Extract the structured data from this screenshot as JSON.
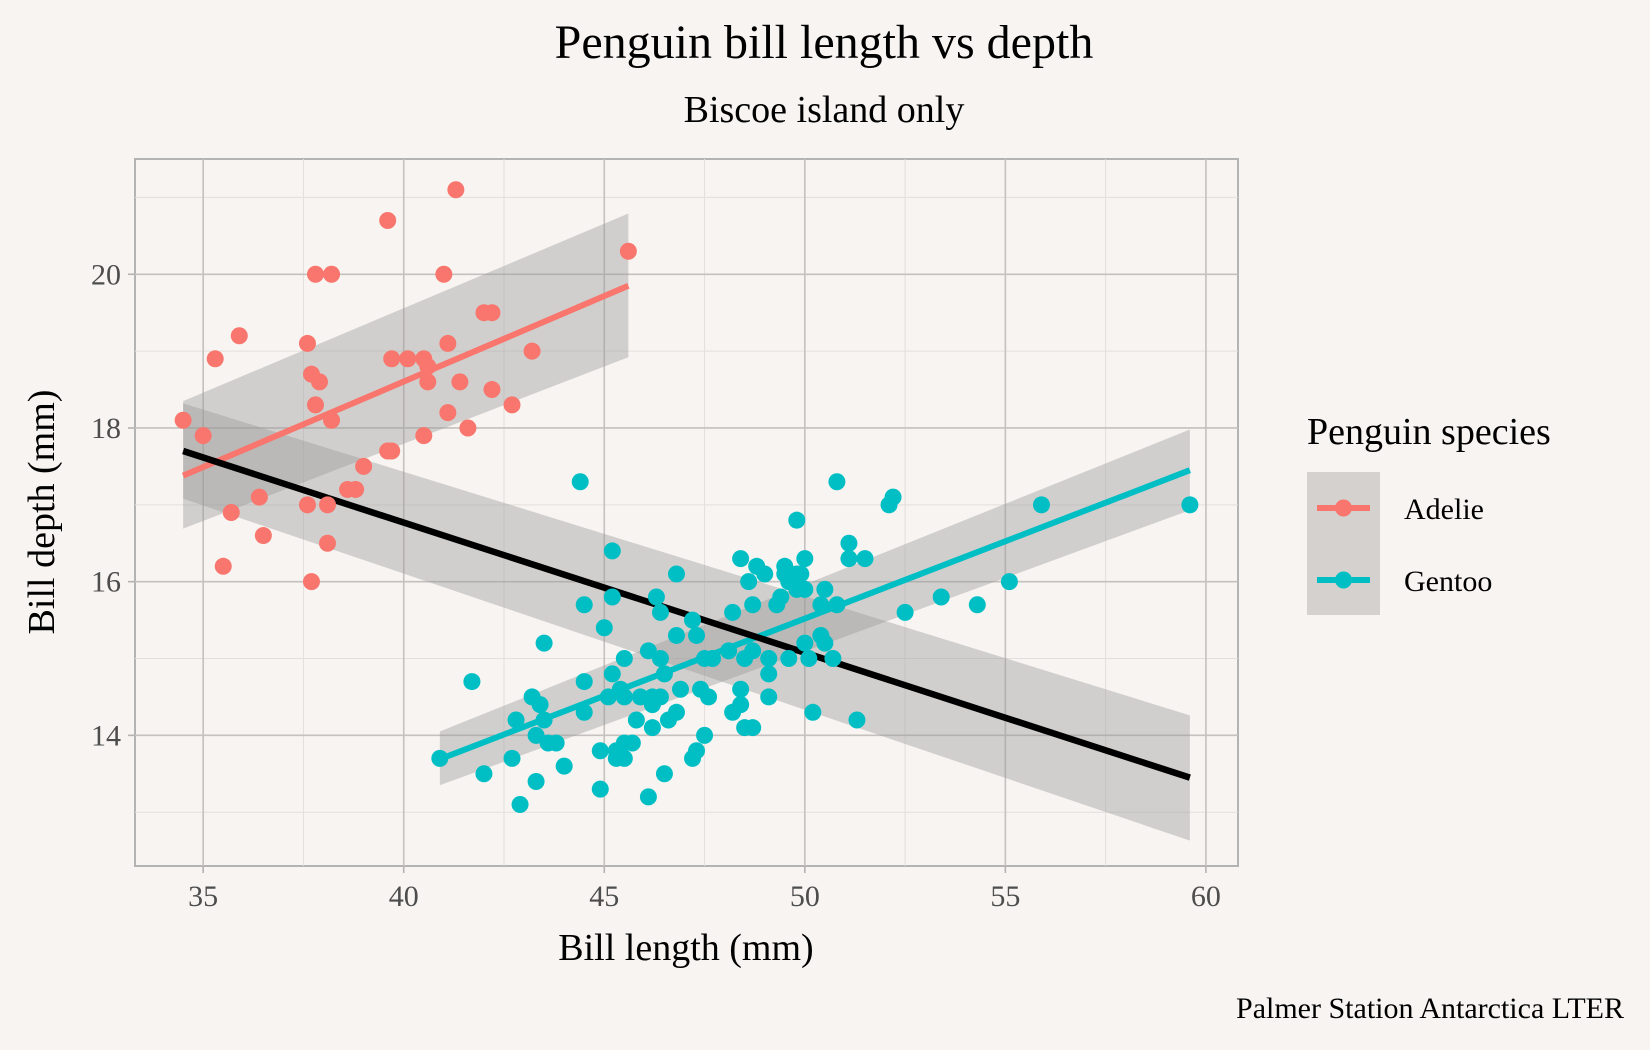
{
  "chart_data": {
    "type": "scatter",
    "title": "Penguin bill length vs depth",
    "subtitle": "Biscoe island only",
    "xlabel": "Bill length  (mm)",
    "ylabel": "Bill depth (mm)",
    "caption": "Palmer Station Antarctica LTER",
    "xlim": [
      33.3,
      60.8
    ],
    "ylim": [
      12.3,
      21.5
    ],
    "x_ticks": [
      35,
      40,
      45,
      50,
      55,
      60
    ],
    "y_ticks": [
      14,
      16,
      18,
      20
    ],
    "x_tick_labels": [
      "35",
      "40",
      "45",
      "50",
      "55",
      "60"
    ],
    "y_tick_labels": [
      "14",
      "16",
      "18",
      "20"
    ],
    "grid": true,
    "legend": {
      "title": "Penguin species",
      "position": "right",
      "entries": [
        {
          "label": "Adelie",
          "color": "#f8766d"
        },
        {
          "label": "Gentoo",
          "color": "#00bfc4"
        }
      ]
    },
    "series": [
      {
        "name": "Adelie",
        "color": "#f8766d",
        "points": [
          [
            34.5,
            18.1
          ],
          [
            35.0,
            17.9
          ],
          [
            35.3,
            18.9
          ],
          [
            35.5,
            16.2
          ],
          [
            35.7,
            16.9
          ],
          [
            35.9,
            19.2
          ],
          [
            36.4,
            17.1
          ],
          [
            36.5,
            16.6
          ],
          [
            37.6,
            19.1
          ],
          [
            37.6,
            17.0
          ],
          [
            37.7,
            18.7
          ],
          [
            37.7,
            16.0
          ],
          [
            37.8,
            20.0
          ],
          [
            37.8,
            18.3
          ],
          [
            37.9,
            18.6
          ],
          [
            38.1,
            17.0
          ],
          [
            38.1,
            16.5
          ],
          [
            38.2,
            20.0
          ],
          [
            38.2,
            18.1
          ],
          [
            38.6,
            17.2
          ],
          [
            38.8,
            17.2
          ],
          [
            39.0,
            17.5
          ],
          [
            39.6,
            20.7
          ],
          [
            39.6,
            17.7
          ],
          [
            39.7,
            17.7
          ],
          [
            39.7,
            18.9
          ],
          [
            40.1,
            18.9
          ],
          [
            40.5,
            18.9
          ],
          [
            40.6,
            18.8
          ],
          [
            40.5,
            17.9
          ],
          [
            40.6,
            18.6
          ],
          [
            41.0,
            20.0
          ],
          [
            41.1,
            19.1
          ],
          [
            41.1,
            18.2
          ],
          [
            41.3,
            21.1
          ],
          [
            41.4,
            18.6
          ],
          [
            41.6,
            18.0
          ],
          [
            42.0,
            19.5
          ],
          [
            42.2,
            19.5
          ],
          [
            42.7,
            18.3
          ],
          [
            42.2,
            18.5
          ],
          [
            43.2,
            19.0
          ],
          [
            45.6,
            20.3
          ]
        ],
        "fit": {
          "x": [
            34.5,
            45.6
          ],
          "y": [
            17.38,
            19.85
          ],
          "ci_low": [
            16.69,
            18.92
          ],
          "ci_high": [
            18.35,
            20.79
          ]
        }
      },
      {
        "name": "Gentoo",
        "color": "#00bfc4",
        "points": [
          [
            40.9,
            13.7
          ],
          [
            41.7,
            14.7
          ],
          [
            42.0,
            13.5
          ],
          [
            42.7,
            13.7
          ],
          [
            42.8,
            14.2
          ],
          [
            42.9,
            13.1
          ],
          [
            43.2,
            14.5
          ],
          [
            43.3,
            13.4
          ],
          [
            43.3,
            14.0
          ],
          [
            43.4,
            14.4
          ],
          [
            43.5,
            14.2
          ],
          [
            43.5,
            15.2
          ],
          [
            43.6,
            13.9
          ],
          [
            43.8,
            13.9
          ],
          [
            44.0,
            13.6
          ],
          [
            44.4,
            17.3
          ],
          [
            44.5,
            15.7
          ],
          [
            44.5,
            14.3
          ],
          [
            44.5,
            14.7
          ],
          [
            44.9,
            13.3
          ],
          [
            44.9,
            13.8
          ],
          [
            45.0,
            15.4
          ],
          [
            45.1,
            14.5
          ],
          [
            45.2,
            16.4
          ],
          [
            45.2,
            15.8
          ],
          [
            45.2,
            14.8
          ],
          [
            45.3,
            13.7
          ],
          [
            45.3,
            13.8
          ],
          [
            45.4,
            14.6
          ],
          [
            45.5,
            13.7
          ],
          [
            45.5,
            13.9
          ],
          [
            45.5,
            15.0
          ],
          [
            45.5,
            14.5
          ],
          [
            45.7,
            13.9
          ],
          [
            45.8,
            14.2
          ],
          [
            45.9,
            14.5
          ],
          [
            46.1,
            13.2
          ],
          [
            46.1,
            15.1
          ],
          [
            46.2,
            14.1
          ],
          [
            46.2,
            14.5
          ],
          [
            46.2,
            14.4
          ],
          [
            46.3,
            15.8
          ],
          [
            46.4,
            15.6
          ],
          [
            46.4,
            15.0
          ],
          [
            46.4,
            14.5
          ],
          [
            46.5,
            13.5
          ],
          [
            46.5,
            14.8
          ],
          [
            46.6,
            14.2
          ],
          [
            46.8,
            14.3
          ],
          [
            46.8,
            15.3
          ],
          [
            46.8,
            16.1
          ],
          [
            46.9,
            14.6
          ],
          [
            47.2,
            13.7
          ],
          [
            47.2,
            15.5
          ],
          [
            47.3,
            13.8
          ],
          [
            47.3,
            15.3
          ],
          [
            47.4,
            14.6
          ],
          [
            47.5,
            14.0
          ],
          [
            47.5,
            15.0
          ],
          [
            47.6,
            14.5
          ],
          [
            47.7,
            15.0
          ],
          [
            48.1,
            15.1
          ],
          [
            48.2,
            14.3
          ],
          [
            48.2,
            15.6
          ],
          [
            48.4,
            14.6
          ],
          [
            48.4,
            16.3
          ],
          [
            48.4,
            14.4
          ],
          [
            48.5,
            14.1
          ],
          [
            48.5,
            15.0
          ],
          [
            48.6,
            16.0
          ],
          [
            48.7,
            14.1
          ],
          [
            48.7,
            15.1
          ],
          [
            48.7,
            15.7
          ],
          [
            48.8,
            16.2
          ],
          [
            49.0,
            16.1
          ],
          [
            49.1,
            14.5
          ],
          [
            49.1,
            14.8
          ],
          [
            49.1,
            15.0
          ],
          [
            49.3,
            15.7
          ],
          [
            49.4,
            15.8
          ],
          [
            49.5,
            16.2
          ],
          [
            49.5,
            16.1
          ],
          [
            49.6,
            15.0
          ],
          [
            49.6,
            16.0
          ],
          [
            49.8,
            15.9
          ],
          [
            49.8,
            16.8
          ],
          [
            49.8,
            16.1
          ],
          [
            49.9,
            16.1
          ],
          [
            50.0,
            15.2
          ],
          [
            50.0,
            15.9
          ],
          [
            50.0,
            16.3
          ],
          [
            50.1,
            15.0
          ],
          [
            50.2,
            14.3
          ],
          [
            50.4,
            15.3
          ],
          [
            50.4,
            15.7
          ],
          [
            50.5,
            15.9
          ],
          [
            50.5,
            15.2
          ],
          [
            50.7,
            15.0
          ],
          [
            50.8,
            15.7
          ],
          [
            50.8,
            17.3
          ],
          [
            51.1,
            16.3
          ],
          [
            51.1,
            16.5
          ],
          [
            51.3,
            14.2
          ],
          [
            51.5,
            16.3
          ],
          [
            52.1,
            17.0
          ],
          [
            52.2,
            17.1
          ],
          [
            52.5,
            15.6
          ],
          [
            53.4,
            15.8
          ],
          [
            54.3,
            15.7
          ],
          [
            55.1,
            16.0
          ],
          [
            55.9,
            17.0
          ],
          [
            59.6,
            17.0
          ]
        ],
        "fit": {
          "x": [
            40.9,
            59.6
          ],
          "y": [
            13.69,
            17.45
          ],
          "ci_low": [
            13.35,
            16.93
          ],
          "ci_high": [
            14.05,
            17.98
          ]
        }
      }
    ],
    "overall_fit": {
      "color": "#000000",
      "x": [
        34.5,
        59.6
      ],
      "y": [
        17.7,
        13.45
      ],
      "ci_low": [
        17.08,
        12.63
      ],
      "ci_high": [
        18.32,
        14.26
      ]
    }
  }
}
